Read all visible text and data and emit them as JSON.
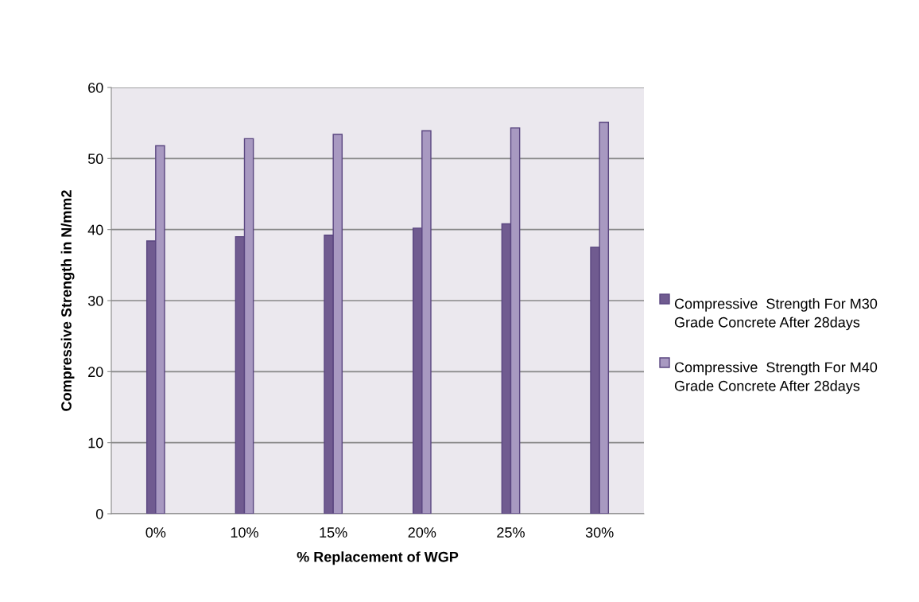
{
  "chart_data": {
    "type": "bar",
    "xlabel": "% Replacement of WGP",
    "ylabel": "Compressive Strength in N/mm2",
    "categories": [
      "0%",
      "10%",
      "15%",
      "20%",
      "25%",
      "30%"
    ],
    "series": [
      {
        "name": "Compressive  Strength For M30 Grade Concrete After 28days",
        "color": "#705b90",
        "values": [
          38.4,
          39.0,
          39.2,
          40.2,
          40.8,
          37.5
        ]
      },
      {
        "name": "Compressive  Strength For M40 Grade Concrete After 28days",
        "color": "#a899c1",
        "values": [
          51.8,
          52.8,
          53.4,
          53.9,
          54.3,
          55.1
        ]
      }
    ],
    "ylim": [
      0,
      60
    ],
    "yticks": [
      0,
      10,
      20,
      30,
      40,
      50,
      60
    ],
    "grid": "y",
    "legend": "right"
  }
}
